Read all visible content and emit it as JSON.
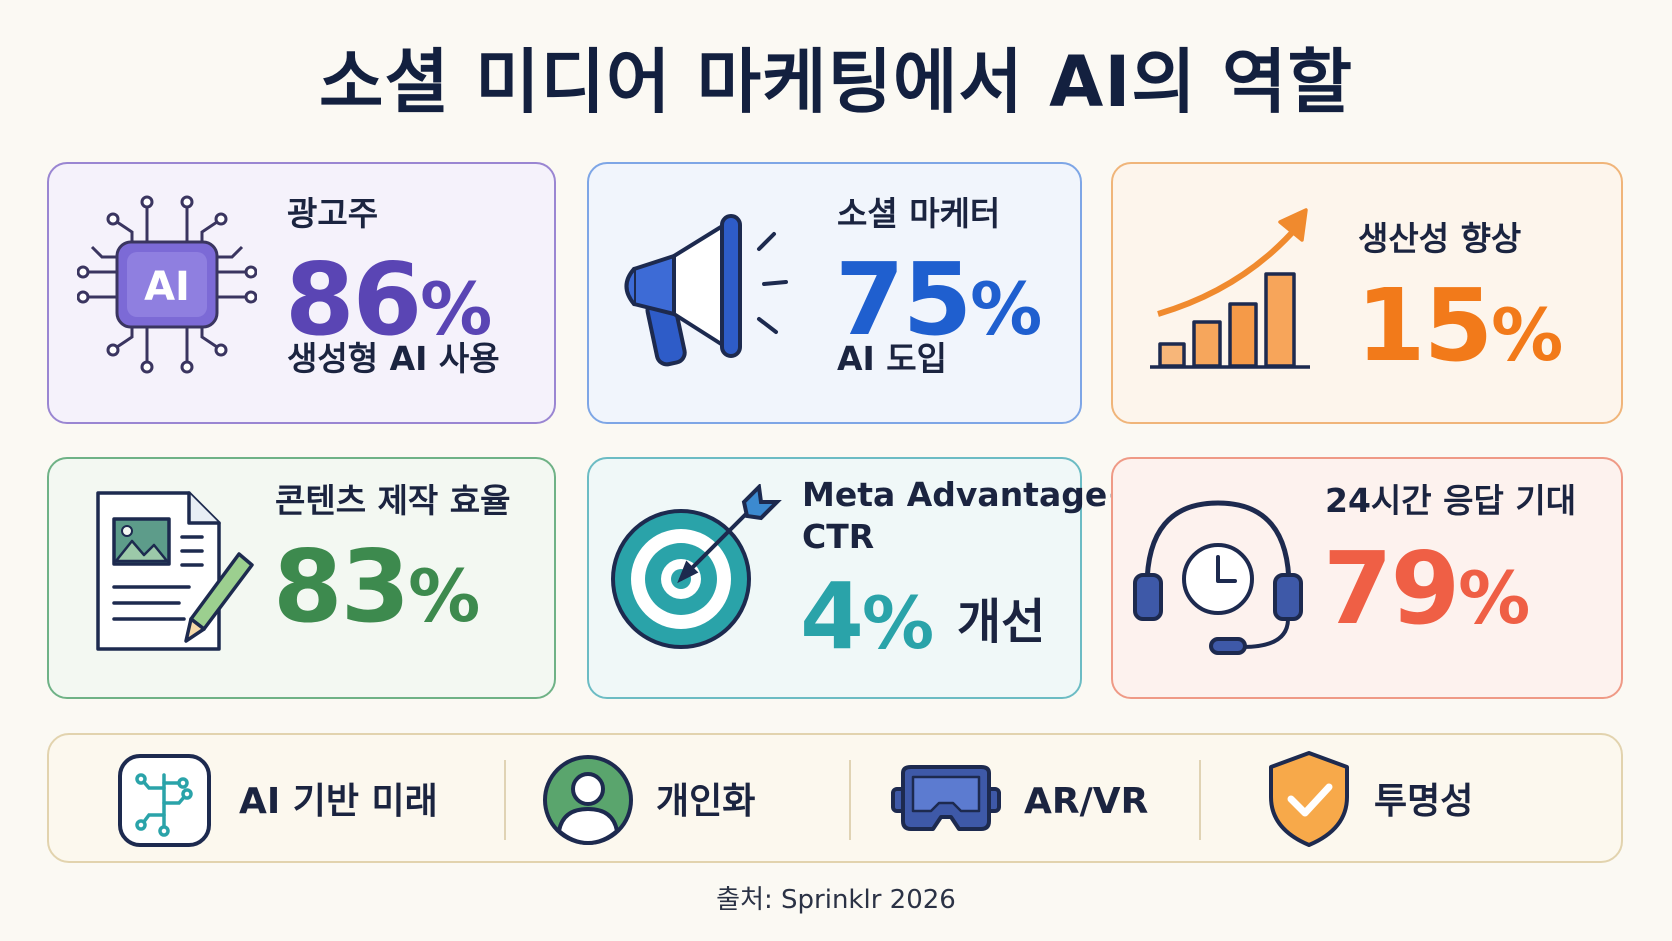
{
  "title": "소셜 미디어 마케팅에서 AI의 역할",
  "cards": [
    {
      "label_top": "광고주",
      "value": "86",
      "unit": "%",
      "label_bottom": "생성형 AI 사용",
      "color": "#5a45b4",
      "icon": "ai-chip-icon",
      "icon_text": "AI"
    },
    {
      "label_top": "소셜 마케터",
      "value": "75",
      "unit": "%",
      "label_bottom": "AI 도입",
      "color": "#1f5fcf",
      "icon": "megaphone-icon"
    },
    {
      "label_top": "생산성 향상",
      "value": "15",
      "unit": "%",
      "color": "#f27a1a",
      "icon": "growth-chart-icon"
    },
    {
      "label_top": "콘텐츠 제작 효율",
      "value": "83",
      "unit": "%",
      "color": "#3d8a4e",
      "icon": "document-pencil-icon"
    },
    {
      "label_top_1": "Meta Advantage+",
      "label_top_2": "CTR",
      "value": "4",
      "unit": "%",
      "label_suffix": "개선",
      "color": "#2aa3a9",
      "icon": "target-icon"
    },
    {
      "label_top": "24시간 응답 기대",
      "value": "79",
      "unit": "%",
      "color": "#ef5f45",
      "icon": "headset-clock-icon"
    }
  ],
  "bottom_items": [
    {
      "label": "AI 기반 미래",
      "icon": "ai-circuit-icon"
    },
    {
      "label": "개인화",
      "icon": "user-icon"
    },
    {
      "label": "AR/VR",
      "icon": "vr-headset-icon"
    },
    {
      "label": "투명성",
      "icon": "shield-check-icon"
    }
  ],
  "source": "출처: Sprinklr 2026"
}
